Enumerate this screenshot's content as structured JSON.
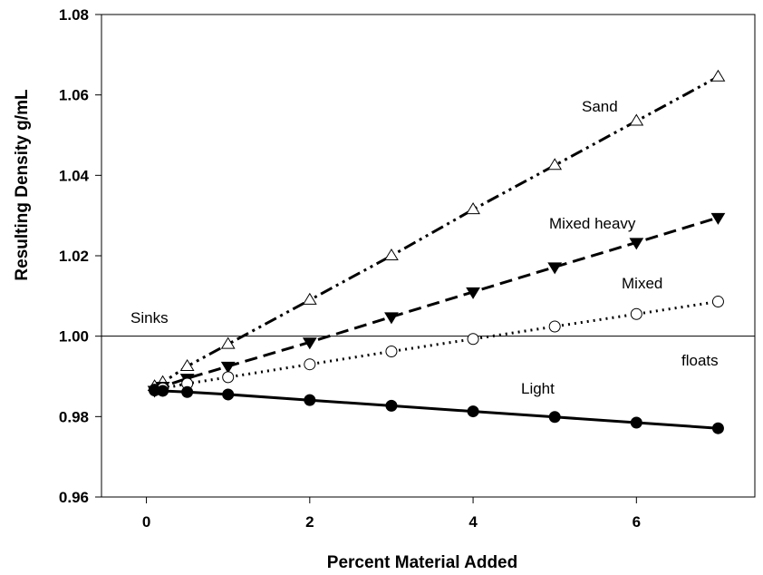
{
  "chart_data": {
    "type": "line",
    "title": "",
    "xlabel": "Percent Material Added",
    "ylabel": "Resulting Density  g/mL",
    "xlim": [
      -0.55,
      7.45
    ],
    "ylim": [
      0.96,
      1.08
    ],
    "xticks": [
      0,
      2,
      4,
      6
    ],
    "xtick_labels": [
      "0",
      "2",
      "4",
      "6"
    ],
    "yticks": [
      0.96,
      0.98,
      1.0,
      1.02,
      1.04,
      1.06,
      1.08
    ],
    "ytick_labels": [
      "0.96",
      "0.98",
      "1.00",
      "1.02",
      "1.04",
      "1.06",
      "1.08"
    ],
    "grid": false,
    "reference_line": {
      "y": 1.0
    },
    "series": [
      {
        "name": "Sand",
        "marker": "open-triangle-up",
        "line_style": "dash-dot-dot",
        "x": [
          0.1,
          0.2,
          0.5,
          1,
          2,
          3,
          4,
          5,
          6,
          7
        ],
        "y": [
          0.9875,
          0.9885,
          0.9925,
          0.998,
          1.009,
          1.02,
          1.0315,
          1.0425,
          1.0535,
          1.0645
        ]
      },
      {
        "name": "Mixed heavy",
        "marker": "filled-triangle-down",
        "line_style": "long-dash",
        "x": [
          0.1,
          0.2,
          0.5,
          1,
          2,
          3,
          4,
          5,
          6,
          7
        ],
        "y": [
          0.9865,
          0.9875,
          0.9895,
          0.9925,
          0.9985,
          1.0048,
          1.011,
          1.0172,
          1.0233,
          1.0295
        ]
      },
      {
        "name": "Mixed",
        "marker": "open-circle",
        "line_style": "dotted",
        "x": [
          0.1,
          0.2,
          0.5,
          1,
          2,
          3,
          4,
          5,
          6,
          7
        ],
        "y": [
          0.9867,
          0.987,
          0.9882,
          0.9898,
          0.993,
          0.9962,
          0.9993,
          1.0024,
          1.0055,
          1.0086
        ]
      },
      {
        "name": "Light",
        "marker": "filled-circle",
        "line_style": "solid",
        "x": [
          0.1,
          0.2,
          0.5,
          1,
          2,
          3,
          4,
          5,
          6,
          7
        ],
        "y": [
          0.9865,
          0.9864,
          0.9861,
          0.9855,
          0.9841,
          0.9827,
          0.9813,
          0.9799,
          0.9785,
          0.9771
        ]
      }
    ],
    "annotations": [
      "Sinks",
      "floats"
    ]
  }
}
